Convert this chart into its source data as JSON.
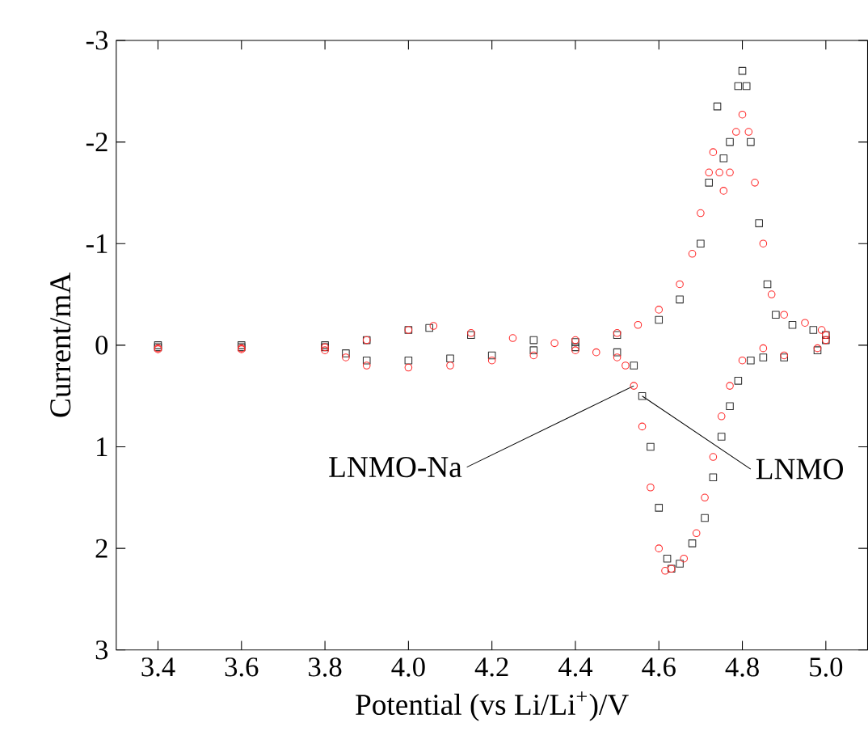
{
  "chart_data": {
    "type": "scatter",
    "xlabel": "Potential (vs Li/Li$^{+}$)/V",
    "ylabel": "Current/mA",
    "xlim": [
      3.3,
      5.1
    ],
    "ylim": [
      3,
      -3
    ],
    "xticks": [
      3.4,
      3.6,
      3.8,
      {
        "value": 4.0,
        "label": "4.0"
      },
      4.2,
      4.4,
      4.6,
      4.8,
      {
        "value": 5.0,
        "label": "5.0"
      }
    ],
    "yticks": [
      -3,
      -2,
      -1,
      0,
      1,
      2,
      3
    ],
    "legend": false,
    "grid": false,
    "series": [
      {
        "name": "LNMO",
        "color": "#333333",
        "marker": "square",
        "x": [
          3.4,
          3.6,
          3.8,
          3.9,
          4.0,
          4.05,
          4.15,
          4.3,
          4.4,
          4.5,
          4.6,
          4.65,
          4.7,
          4.72,
          4.74,
          4.755,
          4.77,
          4.79,
          4.8,
          4.81,
          4.82,
          4.84,
          4.86,
          4.88,
          4.92,
          4.97,
          5.0,
          5.0,
          4.98,
          4.9,
          4.85,
          4.82,
          4.79,
          4.77,
          4.75,
          4.73,
          4.71,
          4.68,
          4.65,
          4.63,
          4.62,
          4.6,
          4.58,
          4.56,
          4.54,
          4.5,
          4.4,
          4.3,
          4.2,
          4.1,
          4.0,
          3.9,
          3.85,
          3.8,
          3.6,
          3.4
        ],
        "values": [
          0.0,
          0.0,
          0.0,
          -0.05,
          -0.15,
          -0.17,
          -0.1,
          -0.05,
          -0.03,
          -0.1,
          -0.25,
          -0.45,
          -1.0,
          -1.6,
          -2.35,
          -1.84,
          -2.0,
          -2.55,
          -2.7,
          -2.55,
          -2.0,
          -1.2,
          -0.6,
          -0.3,
          -0.2,
          -0.15,
          -0.1,
          -0.05,
          0.05,
          0.12,
          0.12,
          0.15,
          0.35,
          0.6,
          0.9,
          1.3,
          1.7,
          1.95,
          2.15,
          2.2,
          2.1,
          1.6,
          1.0,
          0.5,
          0.2,
          0.07,
          0.02,
          0.05,
          0.1,
          0.13,
          0.15,
          0.15,
          0.08,
          0.02,
          0.02,
          0.02
        ]
      },
      {
        "name": "LNMO-Na",
        "color": "#ff2a2a",
        "marker": "circle",
        "x": [
          3.4,
          3.6,
          3.8,
          3.9,
          4.0,
          4.06,
          4.15,
          4.25,
          4.35,
          4.4,
          4.5,
          4.55,
          4.6,
          4.65,
          4.68,
          4.7,
          4.72,
          4.73,
          4.745,
          4.755,
          4.77,
          4.785,
          4.8,
          4.815,
          4.83,
          4.85,
          4.87,
          4.9,
          4.95,
          4.99,
          5.0,
          5.0,
          4.98,
          4.9,
          4.85,
          4.8,
          4.77,
          4.75,
          4.73,
          4.71,
          4.69,
          4.66,
          4.63,
          4.615,
          4.6,
          4.58,
          4.56,
          4.54,
          4.52,
          4.5,
          4.45,
          4.4,
          4.3,
          4.2,
          4.1,
          4.0,
          3.9,
          3.85,
          3.8,
          3.6,
          3.4
        ],
        "values": [
          0.03,
          0.03,
          0.02,
          -0.05,
          -0.15,
          -0.19,
          -0.12,
          -0.07,
          -0.02,
          -0.05,
          -0.12,
          -0.2,
          -0.35,
          -0.6,
          -0.9,
          -1.3,
          -1.7,
          -1.9,
          -1.7,
          -1.52,
          -1.7,
          -2.1,
          -2.27,
          -2.1,
          -1.6,
          -1.0,
          -0.5,
          -0.3,
          -0.22,
          -0.15,
          -0.1,
          -0.05,
          0.03,
          0.1,
          0.03,
          0.15,
          0.4,
          0.7,
          1.1,
          1.5,
          1.85,
          2.1,
          2.2,
          2.22,
          2.0,
          1.4,
          0.8,
          0.4,
          0.2,
          0.12,
          0.07,
          0.05,
          0.1,
          0.15,
          0.2,
          0.22,
          0.2,
          0.12,
          0.05,
          0.04,
          0.04
        ]
      }
    ]
  }
}
